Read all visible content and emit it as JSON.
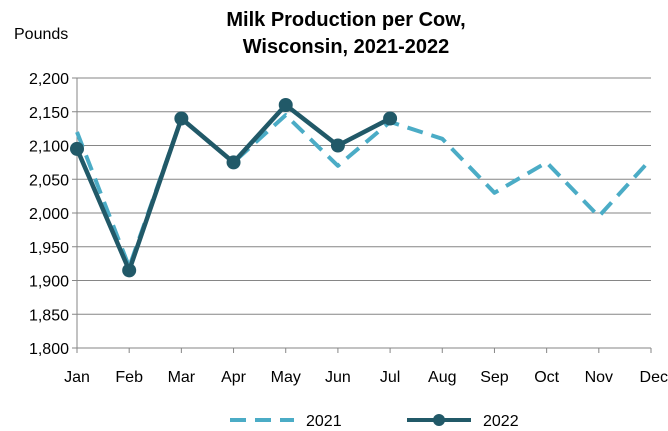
{
  "chart_data": {
    "type": "line",
    "title": [
      "Milk Production per Cow,",
      "Wisconsin, 2021-2022"
    ],
    "ylabel": "Pounds",
    "xlabel": "",
    "categories": [
      "Jan",
      "Feb",
      "Mar",
      "Apr",
      "May",
      "Jun",
      "Jul",
      "Aug",
      "Sep",
      "Oct",
      "Nov",
      "Dec"
    ],
    "ylim": [
      1800,
      2200
    ],
    "yticks": [
      1800,
      1850,
      1900,
      1950,
      2000,
      2050,
      2100,
      2150,
      2200
    ],
    "ytick_labels": [
      "1,800",
      "1,850",
      "1,900",
      "1,950",
      "2,000",
      "2,050",
      "2,100",
      "2,150",
      "2,200"
    ],
    "grid": true,
    "legend_position": "bottom",
    "series": [
      {
        "name": "2021",
        "values": [
          2120,
          1920,
          2140,
          2075,
          2145,
          2070,
          2135,
          2110,
          2030,
          2075,
          1995,
          2080
        ],
        "color": "#4bacc6",
        "style": "dashed",
        "markers": false
      },
      {
        "name": "2022",
        "values": [
          2095,
          1915,
          2140,
          2075,
          2160,
          2100,
          2140,
          null,
          null,
          null,
          null,
          null
        ],
        "color": "#215968",
        "style": "solid",
        "markers": true
      }
    ]
  }
}
